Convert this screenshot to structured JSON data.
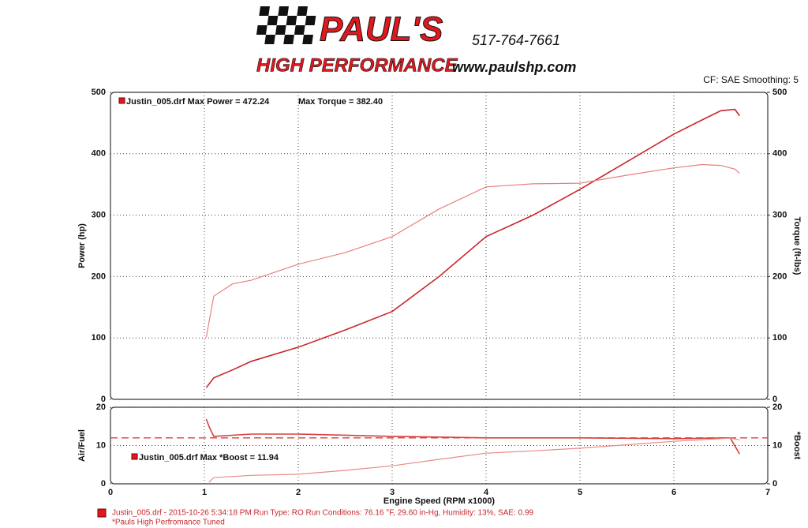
{
  "header": {
    "brand": "PAUL'S",
    "tagline": "HIGH PERFORMANCE",
    "phone": "517-764-7661",
    "website": "www.paulshp.com",
    "settings": "CF: SAE  Smoothing: 5"
  },
  "chart_data": [
    {
      "type": "line",
      "ylabel": "Power (hp)",
      "y2label": "Torque (ft-lbs)",
      "annotations": [
        "Justin_005.drf Max Power = 472.24",
        "Max Torque = 382.40"
      ],
      "x": [
        1.02,
        1.1,
        1.3,
        1.5,
        2,
        2.5,
        3,
        3.5,
        4,
        4.5,
        5,
        5.5,
        6,
        6.3,
        6.5,
        6.65,
        6.7
      ],
      "series": [
        {
          "name": "Power",
          "color": "#c8262c",
          "values": [
            19,
            35,
            48,
            62,
            85,
            113,
            143,
            200,
            265,
            300,
            342,
            387,
            432,
            455,
            470,
            472.24,
            462
          ]
        },
        {
          "name": "Torque",
          "color": "#e8807c",
          "axis": "y2",
          "values": [
            101,
            168,
            188,
            194,
            220,
            239,
            265,
            310,
            346,
            351,
            352,
            365,
            377,
            382.4,
            381,
            375,
            368
          ]
        }
      ],
      "xlim": [
        0,
        7
      ],
      "xticks": [
        0,
        1,
        2,
        3,
        4,
        5,
        6,
        7
      ],
      "ylim": [
        0,
        500
      ],
      "yticks": [
        0,
        100,
        200,
        300,
        400,
        500
      ],
      "y2lim": [
        0,
        500
      ],
      "y2ticks": [
        0,
        100,
        200,
        300,
        400,
        500
      ],
      "grid": true
    },
    {
      "type": "line",
      "ylabel": "Air/Fuel",
      "y2label": "*Boost",
      "xlabel": "Engine Speed (RPM x1000)",
      "annotations": [
        "Justin_005.drf Max *Boost = 11.94"
      ],
      "x": [
        1.02,
        1.05,
        1.1,
        1.5,
        2,
        2.5,
        3,
        3.5,
        4,
        4.5,
        5,
        5.5,
        6,
        6.6,
        6.7
      ],
      "series": [
        {
          "name": "Air/Fuel",
          "color": "#d8403c",
          "values": [
            16.9,
            15,
            12.4,
            13,
            13,
            12.7,
            12.4,
            12.2,
            12,
            12,
            12,
            11.9,
            11.8,
            12,
            7.8
          ]
        },
        {
          "name": "*Boost",
          "color": "#ea8a86",
          "axis": "y2",
          "values": [
            null,
            0.4,
            1.6,
            2.2,
            2.5,
            3.5,
            4.7,
            6.4,
            8,
            8.6,
            9.3,
            10.2,
            11.1,
            11.94,
            11.5
          ]
        }
      ],
      "reference_line": 12,
      "reference_color": "#d8403c",
      "xlim": [
        0,
        7
      ],
      "xticks": [
        0,
        1,
        2,
        3,
        4,
        5,
        6,
        7
      ],
      "ylim": [
        0,
        20
      ],
      "yticks": [
        0,
        10,
        20
      ],
      "y2lim": [
        0,
        20
      ],
      "y2ticks": [
        0,
        10,
        20
      ],
      "grid": true
    }
  ],
  "footer": {
    "run": "Justin_005.drf - 2015-10-26 5:34:18 PM  Run Type: RO  Run Conditions: 76.16 °F, 29.60 in-Hg,  Humidity:  13%, SAE: 0.99",
    "note": "*Pauls High Perfromance Tuned"
  }
}
